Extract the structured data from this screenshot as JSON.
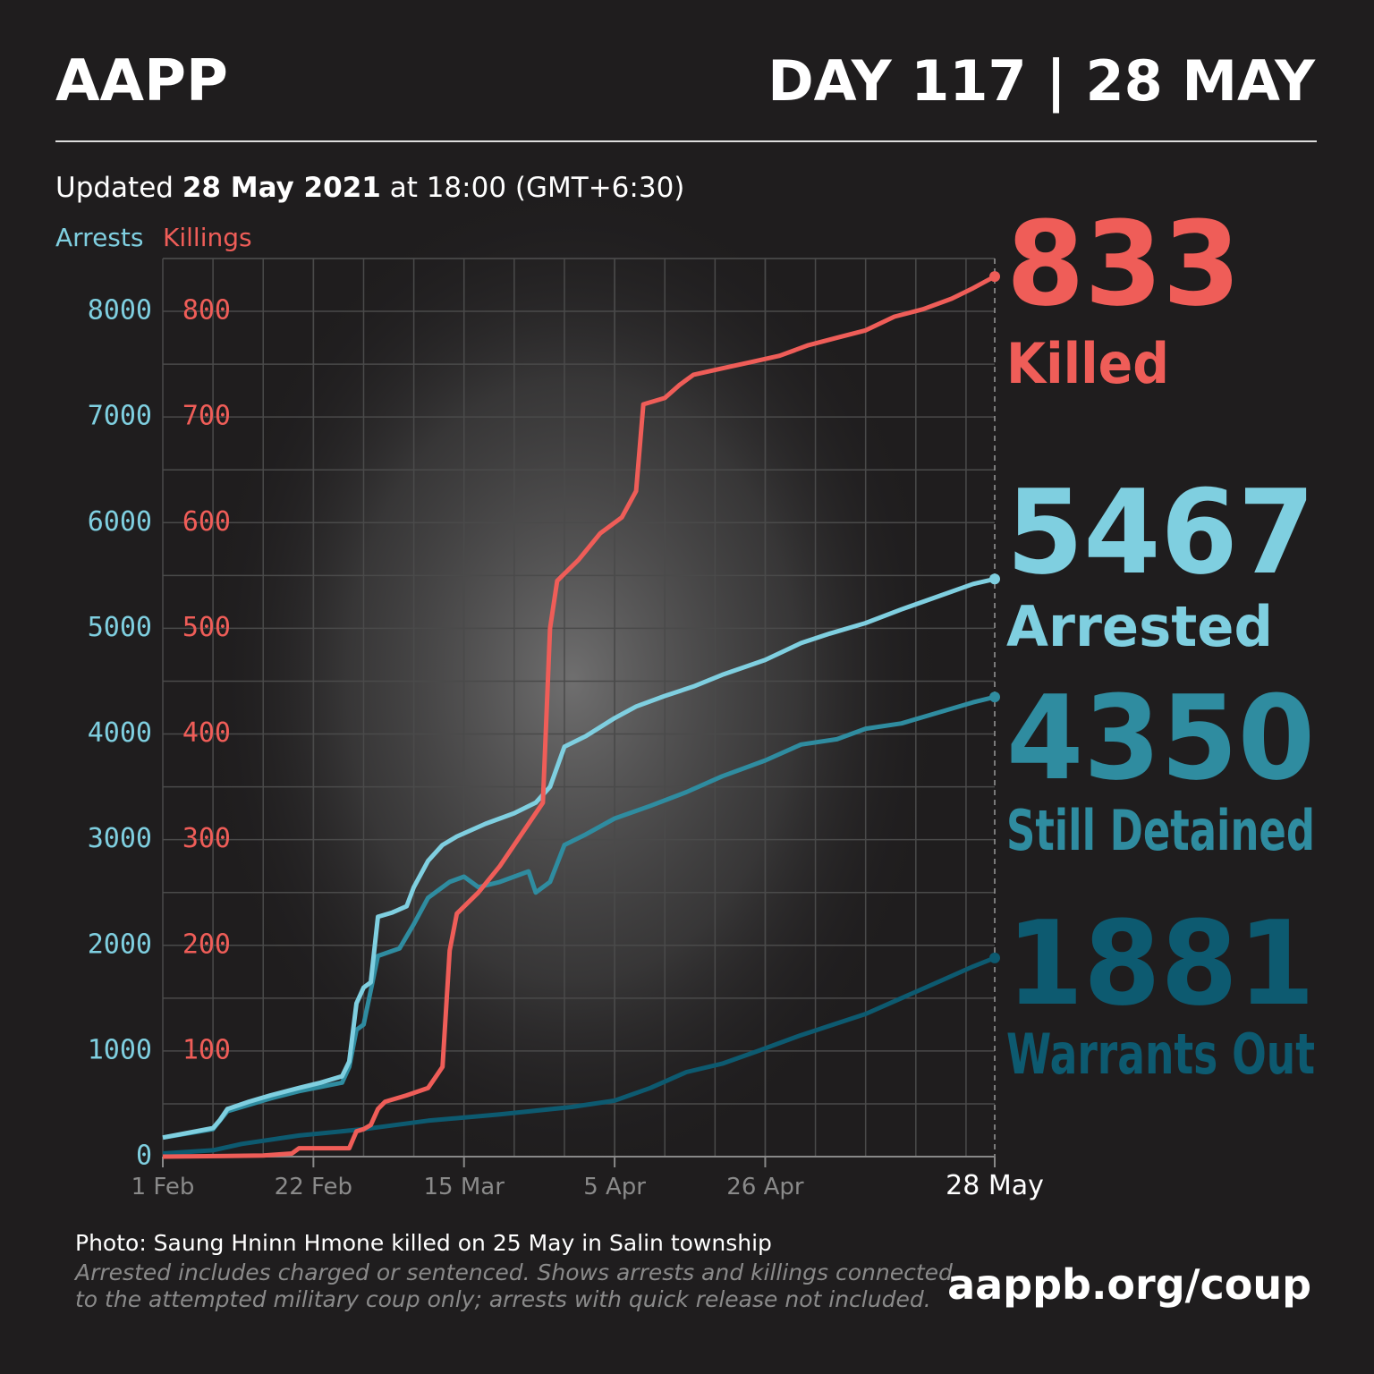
{
  "chart_data": {
    "type": "line",
    "title": "AAPP",
    "day": "DAY 117",
    "separator": "|",
    "date": "28 MAY",
    "updated": [
      "Updated",
      "28 May 2021",
      "at 18:00 (GMT+6:30)"
    ],
    "y_label": "Arrests",
    "y2_label": "Killings",
    "xlim": [
      "2021-02-01",
      "2021-05-28"
    ],
    "xticks": [
      {
        "value": "2021-02-01",
        "label": "1 Feb"
      },
      {
        "value": "2021-02-22",
        "label": "22 Feb"
      },
      {
        "value": "2021-03-15",
        "label": "15 Mar"
      },
      {
        "value": "2021-04-05",
        "label": "5 Apr"
      },
      {
        "value": "2021-04-26",
        "label": "26 Apr"
      },
      {
        "value": "2021-05-28",
        "label": "28 May"
      }
    ],
    "ylim": [
      0,
      8500
    ],
    "yticks": [
      0,
      1000,
      2000,
      3000,
      4000,
      5000,
      6000,
      7000,
      8000
    ],
    "y2lim": [
      0,
      850
    ],
    "y2ticks": [
      100,
      200,
      300,
      400,
      500,
      600,
      700,
      800
    ],
    "grid": true,
    "series": [
      {
        "name": "Killed",
        "color": "#ef5d58",
        "axis": "y2",
        "x": [
          "2021-02-01",
          "2021-02-15",
          "2021-02-19",
          "2021-02-20",
          "2021-02-27",
          "2021-02-28",
          "2021-03-01",
          "2021-03-02",
          "2021-03-03",
          "2021-03-04",
          "2021-03-07",
          "2021-03-10",
          "2021-03-11",
          "2021-03-12",
          "2021-03-13",
          "2021-03-14",
          "2021-03-17",
          "2021-03-20",
          "2021-03-23",
          "2021-03-26",
          "2021-03-27",
          "2021-03-28",
          "2021-03-31",
          "2021-04-03",
          "2021-04-06",
          "2021-04-08",
          "2021-04-09",
          "2021-04-12",
          "2021-04-14",
          "2021-04-16",
          "2021-04-20",
          "2021-04-24",
          "2021-04-28",
          "2021-05-02",
          "2021-05-06",
          "2021-05-10",
          "2021-05-14",
          "2021-05-18",
          "2021-05-22",
          "2021-05-25",
          "2021-05-28"
        ],
        "values": [
          0,
          1,
          3,
          8,
          8,
          24,
          26,
          30,
          45,
          52,
          58,
          65,
          75,
          85,
          195,
          230,
          250,
          275,
          305,
          335,
          500,
          545,
          565,
          590,
          605,
          630,
          712,
          718,
          730,
          740,
          746,
          752,
          758,
          768,
          775,
          782,
          795,
          802,
          812,
          822,
          833
        ]
      },
      {
        "name": "Arrested",
        "color": "#7fcfe0",
        "x": [
          "2021-02-01",
          "2021-02-08",
          "2021-02-09",
          "2021-02-10",
          "2021-02-13",
          "2021-02-16",
          "2021-02-20",
          "2021-02-23",
          "2021-02-26",
          "2021-02-27",
          "2021-02-28",
          "2021-03-01",
          "2021-03-02",
          "2021-03-03",
          "2021-03-05",
          "2021-03-07",
          "2021-03-08",
          "2021-03-10",
          "2021-03-12",
          "2021-03-14",
          "2021-03-18",
          "2021-03-22",
          "2021-03-25",
          "2021-03-27",
          "2021-03-29",
          "2021-04-01",
          "2021-04-05",
          "2021-04-08",
          "2021-04-12",
          "2021-04-16",
          "2021-04-20",
          "2021-04-26",
          "2021-05-01",
          "2021-05-05",
          "2021-05-10",
          "2021-05-15",
          "2021-05-20",
          "2021-05-25",
          "2021-05-28"
        ],
        "values": [
          180,
          270,
          350,
          450,
          520,
          580,
          650,
          700,
          760,
          900,
          1450,
          1600,
          1650,
          2270,
          2310,
          2370,
          2550,
          2800,
          2950,
          3030,
          3150,
          3250,
          3350,
          3500,
          3880,
          3980,
          4150,
          4260,
          4360,
          4450,
          4560,
          4700,
          4860,
          4950,
          5050,
          5180,
          5300,
          5420,
          5467
        ]
      },
      {
        "name": "Still Detained",
        "color": "#2f8ca0",
        "x": [
          "2021-02-01",
          "2021-02-08",
          "2021-02-10",
          "2021-02-16",
          "2021-02-20",
          "2021-02-26",
          "2021-02-27",
          "2021-02-28",
          "2021-03-01",
          "2021-03-03",
          "2021-03-06",
          "2021-03-08",
          "2021-03-10",
          "2021-03-13",
          "2021-03-15",
          "2021-03-17",
          "2021-03-20",
          "2021-03-24",
          "2021-03-25",
          "2021-03-27",
          "2021-03-29",
          "2021-04-01",
          "2021-04-05",
          "2021-04-10",
          "2021-04-15",
          "2021-04-20",
          "2021-04-26",
          "2021-05-01",
          "2021-05-06",
          "2021-05-10",
          "2021-05-15",
          "2021-05-20",
          "2021-05-25",
          "2021-05-28"
        ],
        "values": [
          180,
          260,
          430,
          550,
          620,
          700,
          850,
          1200,
          1250,
          1900,
          1970,
          2200,
          2450,
          2600,
          2650,
          2550,
          2600,
          2700,
          2500,
          2600,
          2950,
          3050,
          3200,
          3320,
          3450,
          3600,
          3750,
          3900,
          3950,
          4050,
          4100,
          4200,
          4300,
          4350
        ]
      },
      {
        "name": "Warrants Out",
        "color": "#0d5a70",
        "x": [
          "2021-02-01",
          "2021-02-08",
          "2021-02-12",
          "2021-02-20",
          "2021-03-01",
          "2021-03-10",
          "2021-03-20",
          "2021-03-30",
          "2021-04-05",
          "2021-04-10",
          "2021-04-15",
          "2021-04-20",
          "2021-04-25",
          "2021-05-01",
          "2021-05-10",
          "2021-05-15",
          "2021-05-20",
          "2021-05-25",
          "2021-05-28"
        ],
        "values": [
          30,
          60,
          120,
          200,
          260,
          340,
          400,
          470,
          530,
          650,
          800,
          880,
          1000,
          1150,
          1350,
          1500,
          1650,
          1800,
          1881
        ]
      }
    ],
    "photo_credit": "Photo: Saung Hninn Hmone killed on 25 May in Salin township",
    "notes": [
      "Arrested includes charged or sentenced. Shows arrests and killings connected",
      "to the attempted military coup only; arrests with quick release not included."
    ],
    "url": "aappb.org/coup"
  }
}
